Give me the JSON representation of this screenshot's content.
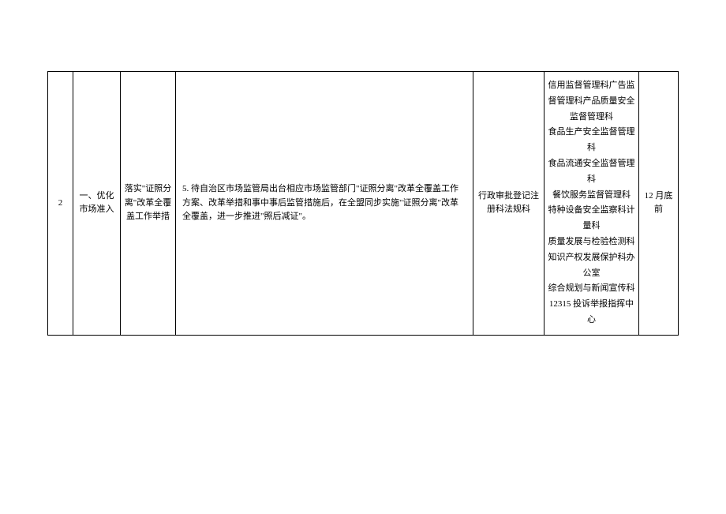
{
  "table": {
    "borderColor": "#000000",
    "backgroundColor": "#ffffff",
    "textColor": "#000000",
    "fontSize": 11,
    "row": {
      "num": "2",
      "section": "一、优化市场准入",
      "measure": "落实\"证照分离\"改革全覆盖工作举措",
      "content": "5. 待自治区市场监管局出台相应市场监管部门\"证照分离\"改革全覆盖工作方案、改革举措和事中事后监管措施后，在全盟同步实施\"证照分离\"改革全覆盖，进一步推进\"照后减证\"。",
      "dept1": "行政审批登记注册科法规科",
      "dept2_lines": [
        "信用监督管理科广告监督管理科产品质量安全监督管理科",
        "食品生产安全监督管理科",
        "食品流通安全监督管理科",
        "餐饮服务监督管理科",
        "特种设备安全监察科计量科",
        "质量发展与检验检测科",
        "知识产权发展保护科办公室",
        "综合规划与新闻宣传科",
        "12315 投诉举报指挥中心"
      ],
      "time": "12 月底前"
    },
    "columnWidths": {
      "num": 32,
      "section": 60,
      "measure": 70,
      "dept1": 90,
      "dept2": 120,
      "time": 50
    }
  }
}
